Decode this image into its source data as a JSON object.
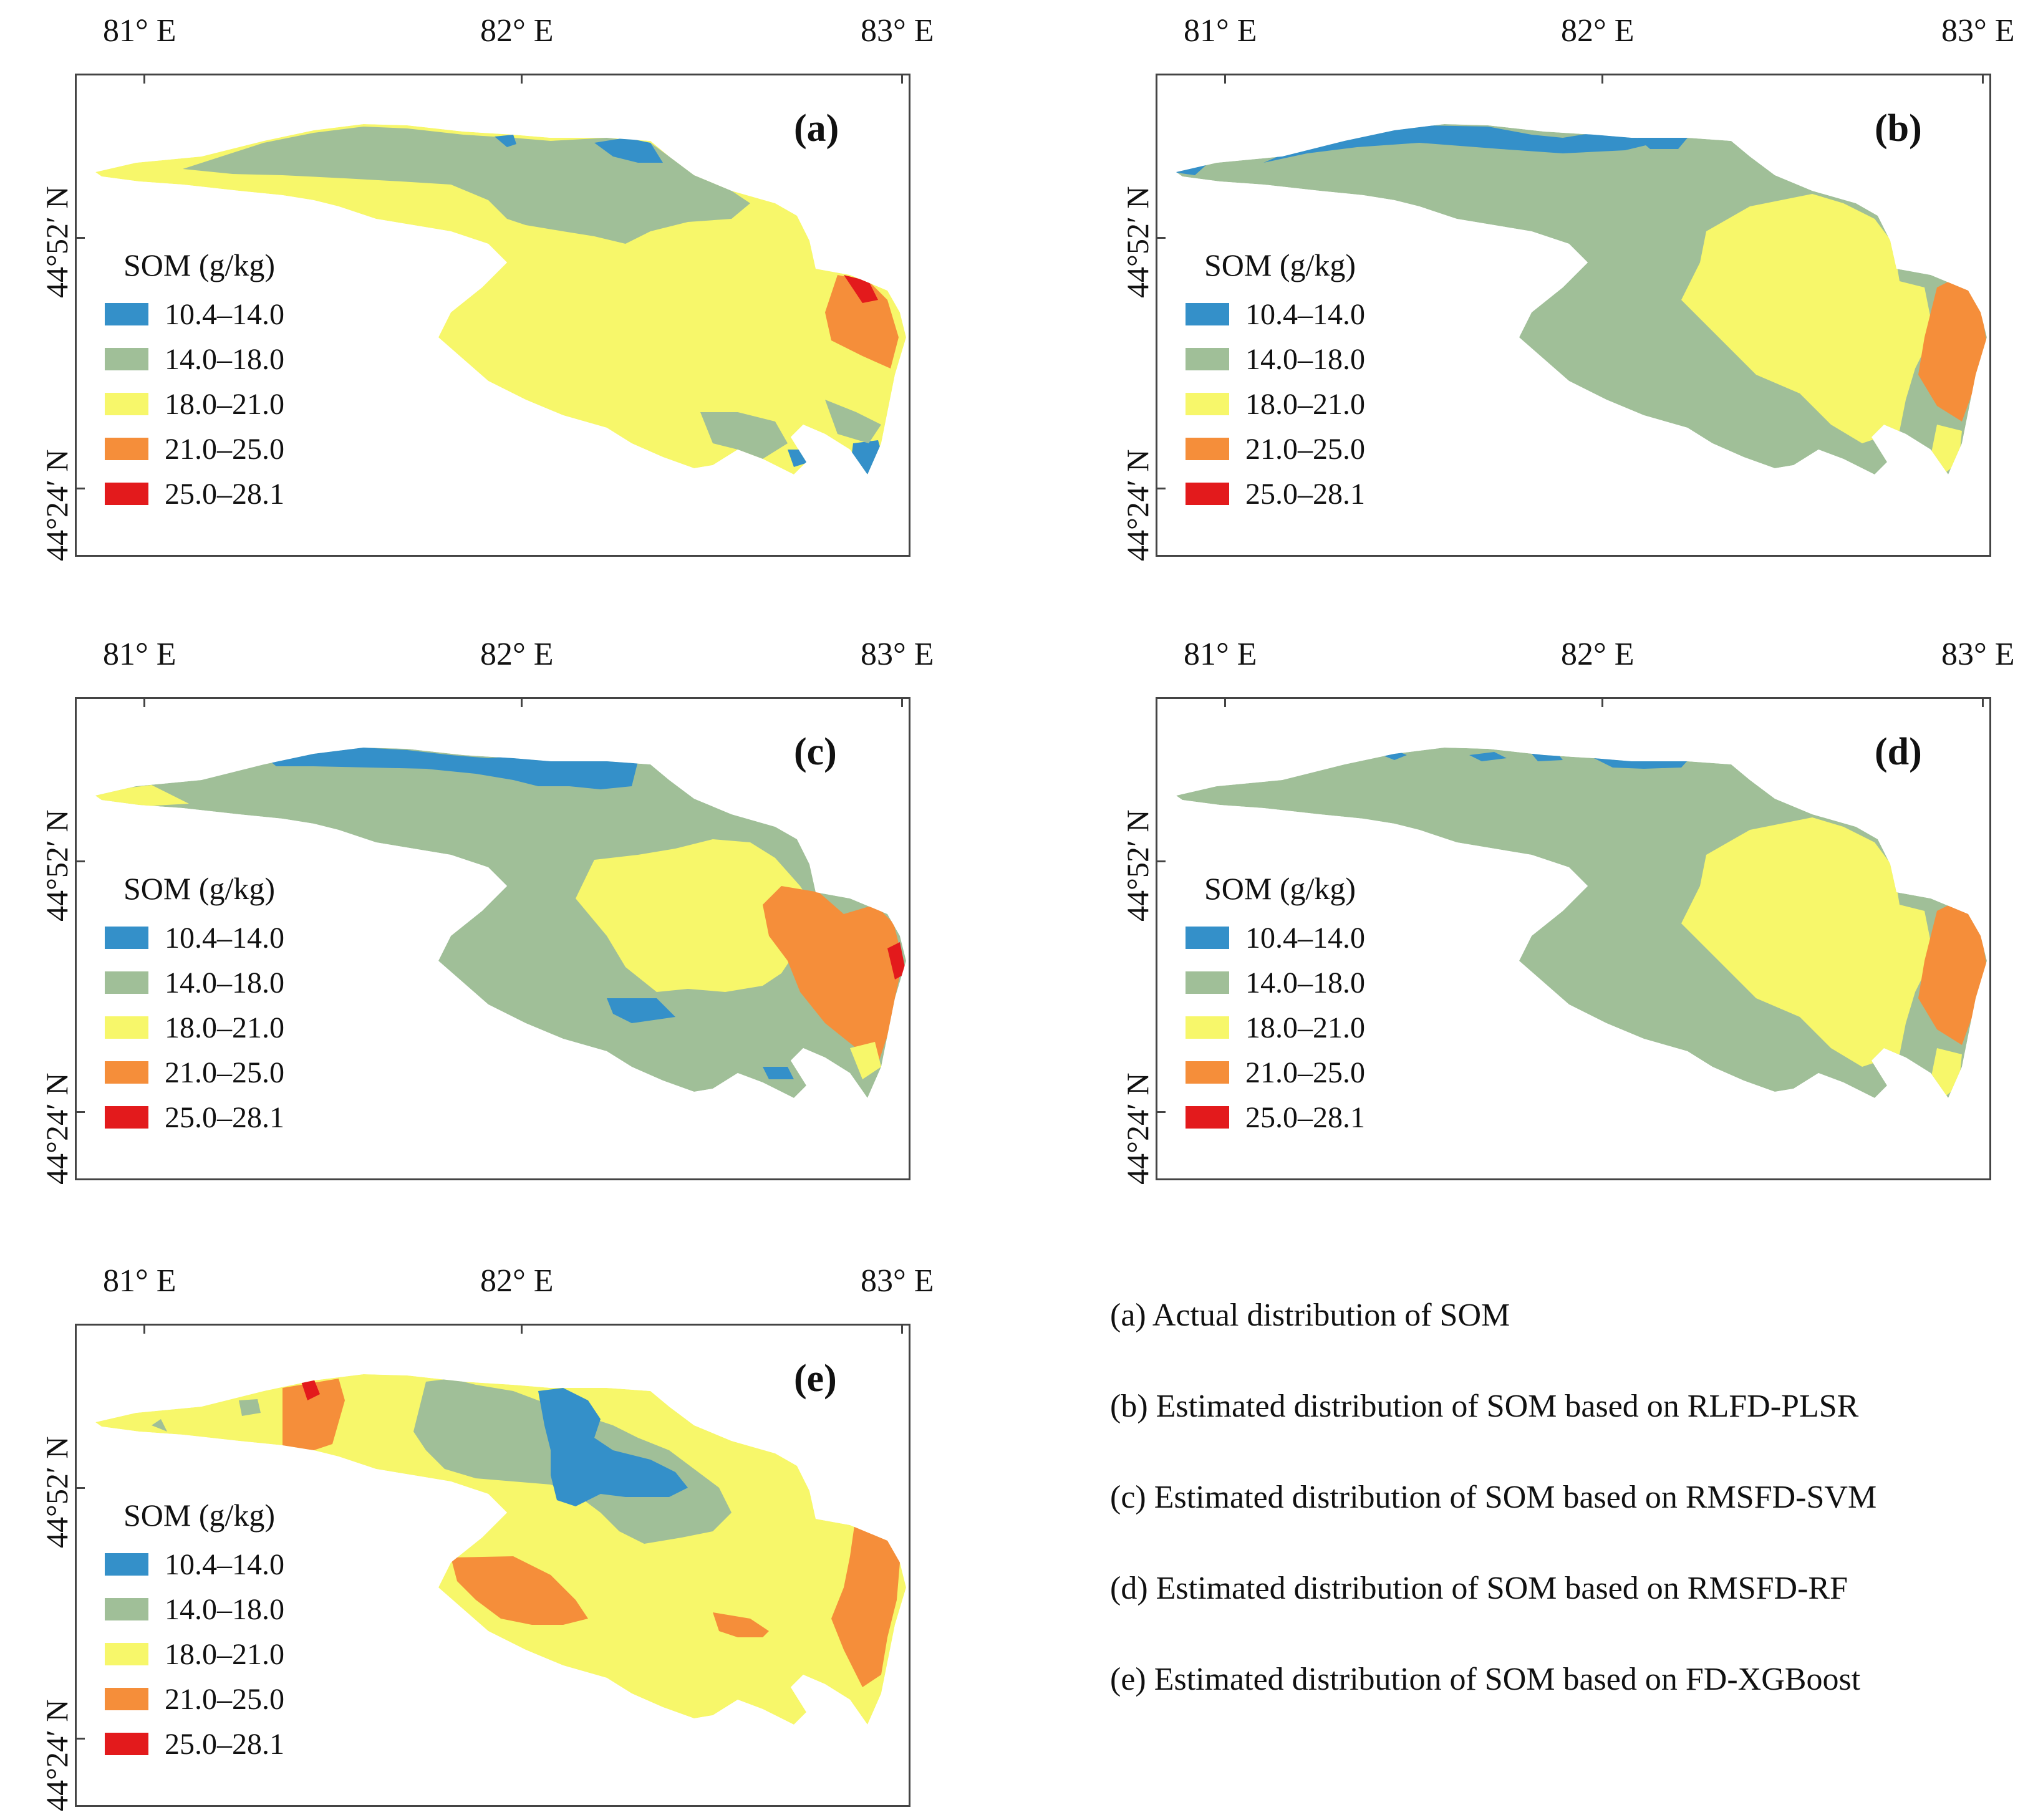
{
  "axes": {
    "lon_ticks": [
      "81° E",
      "82° E",
      "83° E"
    ],
    "lat_ticks": [
      "44°52′ N",
      "44°24′ N"
    ]
  },
  "legend": {
    "title": "SOM (g/kg)",
    "classes": [
      {
        "label": "10.4–14.0",
        "color": "#3490c9"
      },
      {
        "label": "14.0–18.0",
        "color": "#a0bf98"
      },
      {
        "label": "18.0–21.0",
        "color": "#f7f76a"
      },
      {
        "label": "21.0–25.0",
        "color": "#f58e3a"
      },
      {
        "label": "25.0–28.1",
        "color": "#e31a1c"
      }
    ]
  },
  "panels": [
    {
      "label": "(a)"
    },
    {
      "label": "(b)"
    },
    {
      "label": "(c)"
    },
    {
      "label": "(d)"
    },
    {
      "label": "(e)"
    }
  ],
  "captions": [
    "(a) Actual distribution of SOM",
    "(b) Estimated distribution of SOM based on RLFD-PLSR",
    "(c) Estimated distribution of SOM based on RMSFD-SVM",
    "(d) Estimated distribution of SOM based on RMSFD-RF",
    "(e) Estimated distribution of SOM based on FD-XGBoost"
  ]
}
